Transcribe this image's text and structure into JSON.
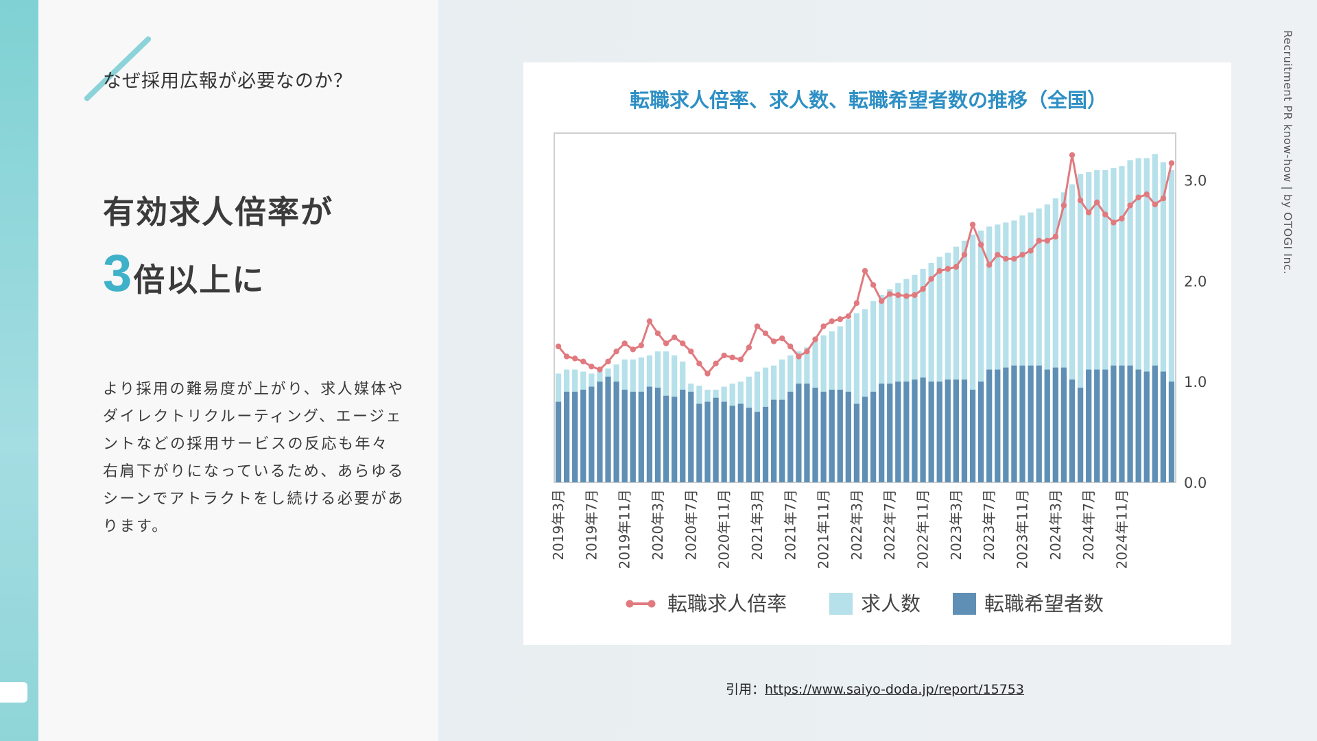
{
  "header": {
    "section_label": "なぜ採用広報が必要なのか？"
  },
  "headline": {
    "line1": "有効求人倍率が",
    "number": "3",
    "line2": "倍以上に"
  },
  "body_text": "より採用の難易度が上がり、求人媒体やダイレクトリクルーティング、エージェントなどの採用サービスの反応も年々右肩下がりになっているため、あらゆるシーンでアトラクトをし続ける必要があります。",
  "side_caption": "Recruitment PR know-how | by OTOGI Inc.",
  "citation": {
    "prefix": "引用：",
    "link_text": "https://www.saiyo-doda.jp/report/15753"
  },
  "colors": {
    "accent": "#3fb1c8",
    "bar_light": "#b6e0ea",
    "bar_dark": "#5f8fb4",
    "line": "#e07a7f",
    "title": "#2e8fc4"
  },
  "chart_data": {
    "type": "bar",
    "title": "転職求人倍率、求人数、転職希望者数の推移（全国）",
    "ylim": [
      0,
      3.4
    ],
    "yticks": [
      "0.0",
      "1.0",
      "2.0",
      "3.0"
    ],
    "ytick_values": [
      0,
      1,
      2,
      3
    ],
    "grid": false,
    "legend_position": "bottom",
    "x_tick_labels": [
      "2019年3月",
      "2019年7月",
      "2019年11月",
      "2020年3月",
      "2020年7月",
      "2020年11月",
      "2021年3月",
      "2021年7月",
      "2021年11月",
      "2022年3月",
      "2022年7月",
      "2022年11月",
      "2023年3月",
      "2023年7月",
      "2023年11月",
      "2024年3月",
      "2024年7月",
      "2024年11月"
    ],
    "x_tick_every": 4,
    "series": [
      {
        "name": "転職求人倍率",
        "type": "line",
        "values": [
          1.35,
          1.25,
          1.23,
          1.2,
          1.15,
          1.12,
          1.2,
          1.3,
          1.38,
          1.32,
          1.36,
          1.6,
          1.48,
          1.38,
          1.44,
          1.38,
          1.3,
          1.18,
          1.08,
          1.18,
          1.26,
          1.24,
          1.22,
          1.34,
          1.55,
          1.48,
          1.4,
          1.43,
          1.35,
          1.25,
          1.3,
          1.42,
          1.55,
          1.6,
          1.62,
          1.65,
          1.78,
          2.1,
          1.96,
          1.8,
          1.87,
          1.86,
          1.85,
          1.86,
          1.92,
          2.02,
          2.1,
          2.12,
          2.14,
          2.26,
          2.56,
          2.36,
          2.16,
          2.26,
          2.22,
          2.22,
          2.26,
          2.3,
          2.4,
          2.4,
          2.44,
          2.75,
          3.25,
          2.8,
          2.68,
          2.78,
          2.66,
          2.58,
          2.62,
          2.75,
          2.83,
          2.86,
          2.76,
          2.82,
          3.17
        ]
      },
      {
        "name": "求人数",
        "type": "bar",
        "values": [
          1.08,
          1.12,
          1.12,
          1.1,
          1.08,
          1.1,
          1.13,
          1.17,
          1.22,
          1.22,
          1.24,
          1.26,
          1.3,
          1.3,
          1.26,
          1.2,
          0.98,
          0.96,
          0.92,
          0.92,
          0.95,
          0.98,
          1.0,
          1.05,
          1.1,
          1.14,
          1.16,
          1.22,
          1.26,
          1.3,
          1.34,
          1.4,
          1.46,
          1.5,
          1.55,
          1.62,
          1.68,
          1.72,
          1.8,
          1.86,
          1.92,
          1.98,
          2.02,
          2.06,
          2.12,
          2.18,
          2.24,
          2.28,
          2.34,
          2.4,
          2.46,
          2.5,
          2.54,
          2.56,
          2.58,
          2.6,
          2.65,
          2.68,
          2.72,
          2.76,
          2.82,
          2.88,
          2.96,
          3.06,
          3.08,
          3.1,
          3.1,
          3.12,
          3.14,
          3.2,
          3.22,
          3.22,
          3.26,
          3.18,
          3.1
        ]
      },
      {
        "name": "転職希望者数",
        "type": "bar",
        "values": [
          0.8,
          0.9,
          0.9,
          0.92,
          0.95,
          1.0,
          1.05,
          1.0,
          0.92,
          0.9,
          0.9,
          0.95,
          0.94,
          0.86,
          0.85,
          0.92,
          0.9,
          0.78,
          0.8,
          0.84,
          0.8,
          0.76,
          0.78,
          0.74,
          0.7,
          0.75,
          0.82,
          0.82,
          0.9,
          0.98,
          0.98,
          0.94,
          0.9,
          0.92,
          0.92,
          0.9,
          0.78,
          0.85,
          0.9,
          0.98,
          0.98,
          1.0,
          1.0,
          1.02,
          1.04,
          1.0,
          1.0,
          1.02,
          1.02,
          1.02,
          0.92,
          1.0,
          1.12,
          1.12,
          1.14,
          1.16,
          1.16,
          1.16,
          1.16,
          1.12,
          1.14,
          1.14,
          1.02,
          0.94,
          1.12,
          1.12,
          1.12,
          1.16,
          1.16,
          1.16,
          1.12,
          1.1,
          1.16,
          1.1,
          1.0
        ]
      }
    ]
  }
}
